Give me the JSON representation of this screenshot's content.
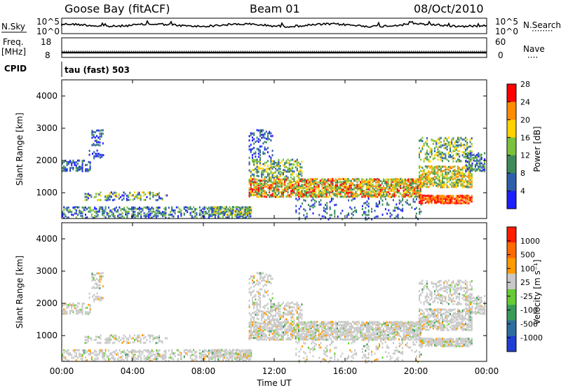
{
  "header": {
    "radar": "Goose Bay (fitACF)",
    "beam": "Beam 01",
    "date": "08/Oct/2010"
  },
  "left_labels": {
    "nsky": "N.Sky",
    "freq": "Freq.",
    "freq_unit": "[MHz]",
    "cpid": "CPID"
  },
  "right_labels": {
    "nsearch": "N.Search",
    "nsearch_dots": "········",
    "nave": "Nave",
    "nave_dots": "····"
  },
  "cpid_text": "tau (fast) 503",
  "chart_data": [
    {
      "type": "line",
      "name": "noise_panel",
      "left_axis_ticks": [
        "10^5",
        "10^0"
      ],
      "right_axis_ticks": [
        "10^5",
        "10^0"
      ],
      "description_series": [
        "N.Sky",
        "N.Search"
      ]
    },
    {
      "type": "line",
      "name": "freq_nave_panel",
      "left_axis_ticks": [
        "18",
        "8"
      ],
      "right_axis_ticks": [
        "60",
        "0"
      ],
      "series": [
        {
          "name": "Freq.",
          "approx_value_mhz": 10
        },
        {
          "name": "Nave",
          "approx_value": 20
        }
      ]
    },
    {
      "type": "heatmap",
      "name": "power",
      "ylabel": "Slant Range [km]",
      "yticks": [
        "1000",
        "2000",
        "3000",
        "4000"
      ],
      "ylim": [
        200,
        4500
      ],
      "colorbar_label": "Power [dB]",
      "colorbar_ticks": [
        "4",
        "8",
        "12",
        "16",
        "20",
        "24",
        "28"
      ],
      "colorbar_colors": [
        "#1e1eff",
        "#2e5fa8",
        "#3d8a5a",
        "#7ac23c",
        "#ffd200",
        "#ff8c00",
        "#ff0000"
      ]
    },
    {
      "type": "heatmap",
      "name": "velocity",
      "ylabel": "Slant Range [km]",
      "yticks": [
        "1000",
        "2000",
        "3000",
        "4000"
      ],
      "ylim": [
        200,
        4500
      ],
      "colorbar_label": "Velocity [m s⁻¹]",
      "colorbar_ticks": [
        "1000",
        "500",
        "100",
        "25",
        "-25",
        "-100",
        "-500",
        "-1000"
      ],
      "colorbar_colors": [
        "#1f3fd4",
        "#2e6e9e",
        "#3a9a5a",
        "#66cc33",
        "#c8c8c8",
        "#ff9a00",
        "#ff6a00",
        "#ff1a00"
      ]
    }
  ],
  "x_axis": {
    "ticks": [
      "00:00",
      "04:00",
      "08:00",
      "12:00",
      "16:00",
      "20:00",
      "00:00"
    ],
    "label": "Time UT"
  }
}
